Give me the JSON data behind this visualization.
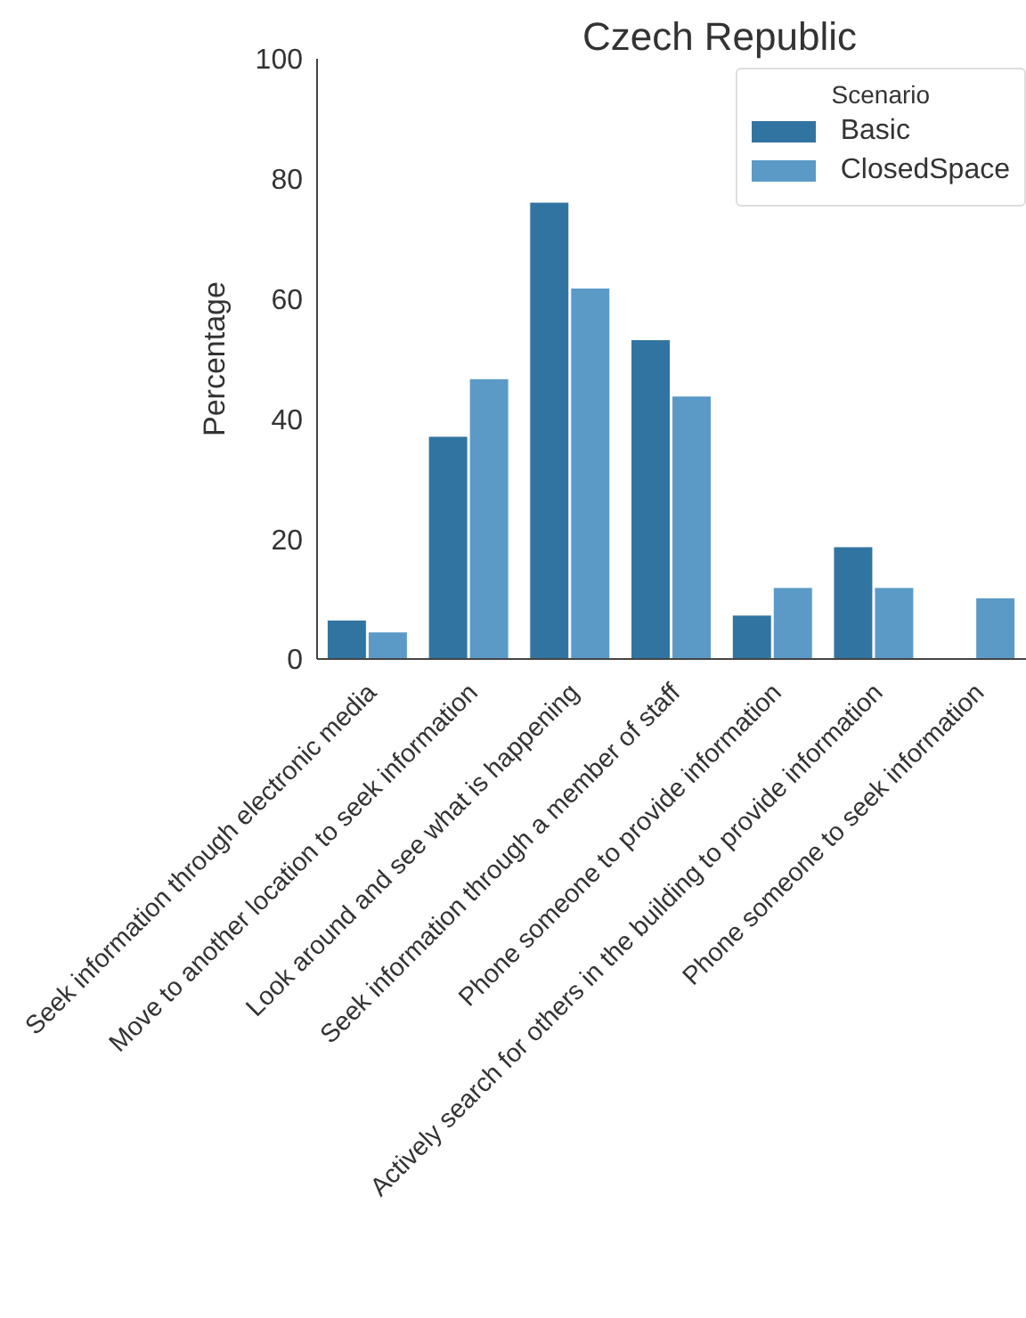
{
  "chart_data": {
    "type": "bar",
    "title": "Czech Republic",
    "ylabel": "Percentage",
    "legend_title": "Scenario",
    "legend": "top right",
    "grid": false,
    "categories": [
      "Seek information through electronic media",
      "Move to another location to seek information",
      "Look around and see what is happening",
      "Seek information through a member of staff",
      "Phone someone to provide information",
      "Actively search for others in the building to provide information",
      "Phone someone to seek information"
    ],
    "series": [
      {
        "name": "Basic",
        "color": "#3274a1",
        "values": [
          6.5,
          37.1,
          76.1,
          53.2,
          7.3,
          18.7,
          0
        ]
      },
      {
        "name": "ClosedSpace",
        "color": "#5b9ac7",
        "values": [
          4.5,
          46.7,
          61.8,
          43.8,
          11.9,
          11.9,
          10.2
        ]
      }
    ],
    "ylim": [
      0,
      100
    ],
    "yticks": [
      0,
      20,
      40,
      60,
      80,
      100
    ]
  }
}
